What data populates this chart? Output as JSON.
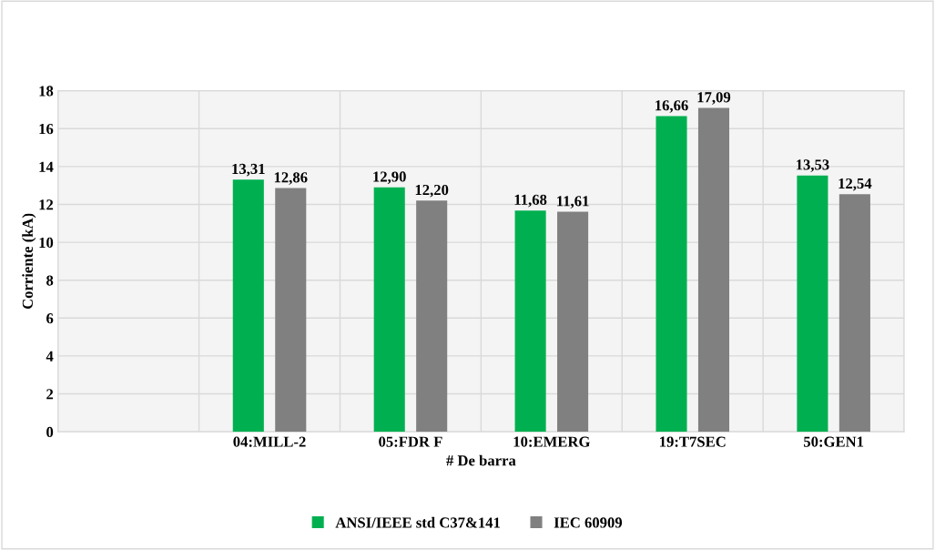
{
  "chart_data": {
    "type": "bar",
    "xlabel": "# De barra",
    "ylabel": "Corriente (kA)",
    "categories": [
      null,
      "04:MILL-2",
      "05:FDR F",
      "10:EMERG",
      "19:T7SEC",
      "50:GEN1"
    ],
    "series": [
      {
        "name": "ANSI/IEEE std C37&141",
        "color": "#00b050",
        "values": [
          null,
          13.31,
          12.9,
          11.68,
          16.66,
          13.53
        ],
        "value_labels": [
          null,
          "13,31",
          "12,90",
          "11,68",
          "16,66",
          "13,53"
        ]
      },
      {
        "name": "IEC 60909",
        "color": "#808080",
        "values": [
          null,
          12.86,
          12.2,
          11.61,
          17.09,
          12.54
        ],
        "value_labels": [
          null,
          "12,86",
          "12,20",
          "11,61",
          "17,09",
          "12,54"
        ]
      }
    ],
    "ylim": [
      0,
      18
    ],
    "yticks": [
      0,
      2,
      4,
      6,
      8,
      10,
      12,
      14,
      16,
      18
    ],
    "grid": true,
    "legend": "bottom"
  }
}
